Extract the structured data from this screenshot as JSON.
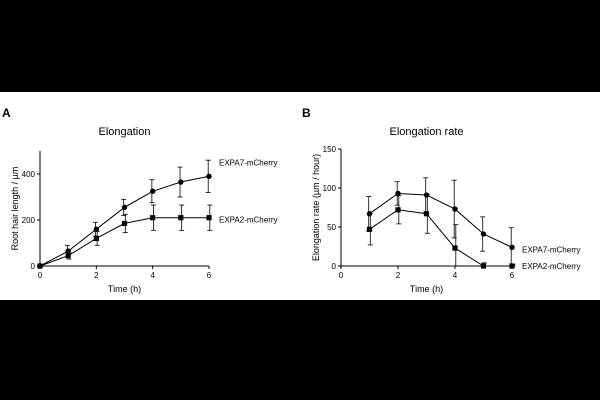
{
  "chart_data": [
    {
      "type": "line",
      "panel_label": "A",
      "title": "Elongation",
      "xlabel": "Time (h)",
      "ylabel": "Root hair length / µm",
      "xlim": [
        0,
        6
      ],
      "ylim": [
        0,
        500
      ],
      "xticks": [
        0,
        2,
        4,
        6
      ],
      "yticks": [
        0,
        200,
        400
      ],
      "series": [
        {
          "name": "EXPA7-mCherry",
          "marker": "circle",
          "x": [
            0,
            1,
            2,
            3,
            4,
            5,
            6
          ],
          "values": [
            0,
            65,
            160,
            255,
            325,
            365,
            390
          ],
          "errors": [
            0,
            25,
            30,
            35,
            50,
            65,
            70
          ]
        },
        {
          "name": "EXPA2-mCherry",
          "marker": "square",
          "x": [
            0,
            1,
            2,
            3,
            4,
            5,
            6
          ],
          "values": [
            0,
            45,
            120,
            185,
            210,
            210,
            210
          ],
          "errors": [
            0,
            15,
            30,
            40,
            55,
            55,
            55
          ]
        }
      ]
    },
    {
      "type": "line",
      "panel_label": "B",
      "title": "Elongation rate",
      "xlabel": "Time (h)",
      "ylabel": "Elongation rate (µm / hour)",
      "xlim": [
        0,
        6
      ],
      "ylim": [
        0,
        150
      ],
      "xticks": [
        0,
        2,
        4,
        6
      ],
      "yticks": [
        0,
        50,
        100,
        150
      ],
      "series": [
        {
          "name": "EXPA7-mCherry",
          "marker": "circle",
          "x": [
            1,
            2,
            3,
            4,
            5,
            6
          ],
          "values": [
            67,
            93,
            91,
            73,
            41,
            24
          ],
          "errors": [
            22,
            15,
            22,
            37,
            22,
            25
          ]
        },
        {
          "name": "EXPA2-mCherry",
          "marker": "square",
          "x": [
            1,
            2,
            3,
            4,
            5,
            6
          ],
          "values": [
            47,
            72,
            67,
            23,
            0,
            0
          ],
          "errors": [
            20,
            18,
            25,
            30,
            4,
            2
          ]
        }
      ]
    }
  ]
}
